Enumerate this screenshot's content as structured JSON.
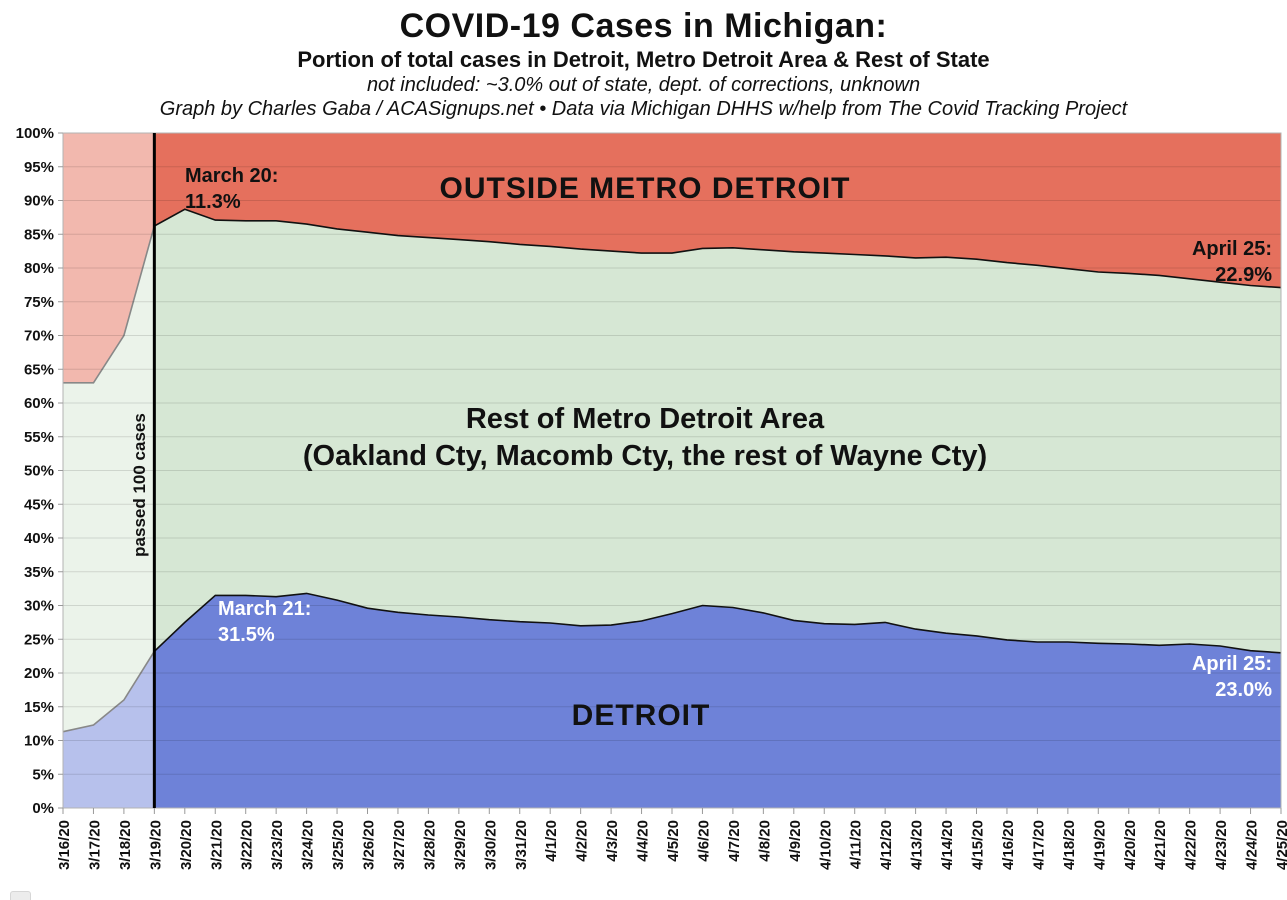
{
  "header": {
    "title": "COVID-19 Cases in Michigan:",
    "subtitle": "Portion of total cases in Detroit, Metro Detroit Area & Rest of State",
    "note": "not included: ~3.0% out of state, dept. of corrections, unknown",
    "credit": "Graph by Charles Gaba / ACASignups.net  •  Data via Michigan DHHS w/help from The Covid Tracking Project"
  },
  "colors": {
    "detroit": "#6e82d8",
    "rest_of_metro": "#d6e7d4",
    "outside_metro": "#e5705d",
    "boundary_line": "#111111",
    "threshold_line": "#000000",
    "annotation_dark": "#111111",
    "annotation_light": "#ffffff"
  },
  "area_labels": {
    "outside": "OUTSIDE METRO DETROIT",
    "rest_line1": "Rest of Metro Detroit Area",
    "rest_line2": "(Oakland Cty, Macomb Cty, the rest of Wayne Cty)",
    "detroit": "DETROIT"
  },
  "annotations": {
    "march20": {
      "line1": "March 20:",
      "line2": "11.3%"
    },
    "april25_outside": {
      "line1": "April 25:",
      "line2": "22.9%"
    },
    "march21": {
      "line1": "March 21:",
      "line2": "31.5%"
    },
    "april25_detroit": {
      "line1": "April 25:",
      "line2": "23.0%"
    },
    "passed_threshold": "passed 100 cases"
  },
  "chart_data": {
    "type": "area",
    "stacked": true,
    "title": "COVID-19 Cases in Michigan: Portion of total cases in Detroit, Metro Detroit Area & Rest of State",
    "xlabel": "",
    "ylabel": "",
    "ylim": [
      0,
      100
    ],
    "y_tick_step": 5,
    "y_tick_labels": [
      "0%",
      "5%",
      "10%",
      "15%",
      "20%",
      "25%",
      "30%",
      "35%",
      "40%",
      "45%",
      "50%",
      "55%",
      "60%",
      "65%",
      "70%",
      "75%",
      "80%",
      "85%",
      "90%",
      "95%",
      "100%"
    ],
    "grid": true,
    "legend_position": "none",
    "threshold_index": 3,
    "x": [
      "3/16/20",
      "3/17/20",
      "3/18/20",
      "3/19/20",
      "3/20/20",
      "3/21/20",
      "3/22/20",
      "3/23/20",
      "3/24/20",
      "3/25/20",
      "3/26/20",
      "3/27/20",
      "3/28/20",
      "3/29/20",
      "3/30/20",
      "3/31/20",
      "4/1/20",
      "4/2/20",
      "4/3/20",
      "4/4/20",
      "4/5/20",
      "4/6/20",
      "4/7/20",
      "4/8/20",
      "4/9/20",
      "4/10/20",
      "4/11/20",
      "4/12/20",
      "4/13/20",
      "4/14/20",
      "4/15/20",
      "4/16/20",
      "4/17/20",
      "4/18/20",
      "4/19/20",
      "4/20/20",
      "4/21/20",
      "4/22/20",
      "4/23/20",
      "4/24/20",
      "4/25/20"
    ],
    "series": [
      {
        "name": "Detroit",
        "values": [
          11.3,
          12.3,
          16.0,
          23.2,
          27.5,
          31.5,
          31.5,
          31.3,
          31.8,
          30.8,
          29.6,
          29.0,
          28.6,
          28.3,
          27.9,
          27.6,
          27.4,
          27.0,
          27.1,
          27.7,
          28.8,
          30.0,
          29.7,
          28.9,
          27.8,
          27.3,
          27.2,
          27.5,
          26.5,
          25.9,
          25.5,
          24.9,
          24.6,
          24.6,
          24.4,
          24.3,
          24.1,
          24.3,
          24.0,
          23.3,
          23.0
        ]
      },
      {
        "name": "Rest of Metro Detroit Area (Oakland Cty, Macomb Cty, the rest of Wayne Cty)",
        "values": [
          51.7,
          50.7,
          54.0,
          63.0,
          61.2,
          55.6,
          55.5,
          55.7,
          54.7,
          55.0,
          55.7,
          55.8,
          55.9,
          55.9,
          56.0,
          55.9,
          55.8,
          55.8,
          55.4,
          54.5,
          53.4,
          52.9,
          53.3,
          53.8,
          54.6,
          54.9,
          54.8,
          54.3,
          55.0,
          55.7,
          55.8,
          55.9,
          55.8,
          55.3,
          55.0,
          54.9,
          54.8,
          54.1,
          53.9,
          54.1,
          54.1
        ]
      },
      {
        "name": "Outside Metro Detroit",
        "values": [
          37.0,
          37.0,
          30.0,
          13.8,
          11.3,
          12.9,
          13.0,
          13.0,
          13.5,
          14.2,
          14.7,
          15.2,
          15.5,
          15.8,
          16.1,
          16.5,
          16.8,
          17.2,
          17.5,
          17.8,
          17.8,
          17.1,
          17.0,
          17.3,
          17.6,
          17.8,
          18.0,
          18.2,
          18.5,
          18.4,
          18.7,
          19.2,
          19.6,
          20.1,
          20.6,
          20.8,
          21.1,
          21.6,
          22.1,
          22.6,
          22.9
        ]
      }
    ]
  }
}
